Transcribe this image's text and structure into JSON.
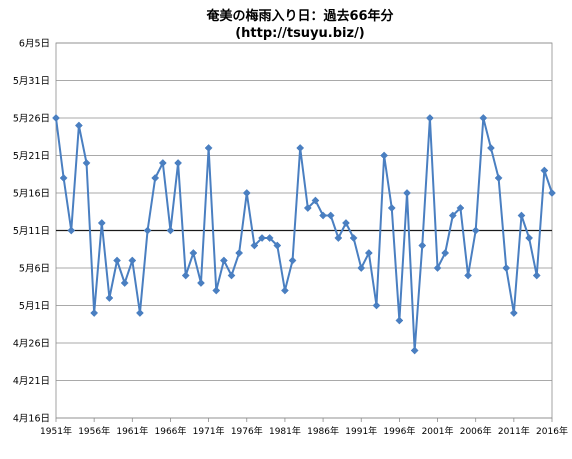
{
  "chart_data": {
    "type": "line",
    "title": "奄美の梅雨入り日：過去66年分",
    "subtitle": "(http://tsuyu.biz/)",
    "y_ticks": [
      "4月16日",
      "4月21日",
      "4月26日",
      "5月1日",
      "5月6日",
      "5月11日",
      "5月16日",
      "5月21日",
      "5月26日",
      "5月31日",
      "6月5日"
    ],
    "x_ticks": [
      "1951年",
      "1956年",
      "1961年",
      "1966年",
      "1971年",
      "1976年",
      "1981年",
      "1986年",
      "1991年",
      "1996年",
      "2001年",
      "2006年",
      "2011年",
      "2016年"
    ],
    "ylim": [
      "4月16日",
      "6月5日"
    ],
    "grid": true,
    "series": [
      {
        "color": "#4a7fc1",
        "marker": "diamond",
        "x": [
          1951,
          1952,
          1953,
          1954,
          1955,
          1956,
          1957,
          1958,
          1959,
          1960,
          1961,
          1962,
          1963,
          1964,
          1965,
          1966,
          1967,
          1968,
          1969,
          1970,
          1971,
          1972,
          1973,
          1974,
          1975,
          1976,
          1977,
          1978,
          1979,
          1980,
          1981,
          1982,
          1983,
          1984,
          1985,
          1986,
          1987,
          1988,
          1989,
          1990,
          1991,
          1992,
          1993,
          1994,
          1995,
          1996,
          1997,
          1998,
          1999,
          2000,
          2001,
          2002,
          2003,
          2004,
          2005,
          2006,
          2007,
          2008,
          2009,
          2010,
          2011,
          2012,
          2013,
          2014,
          2015,
          2016
        ],
        "values": [
          "5月26日",
          "5月18日",
          "5月11日",
          "5月25日",
          "5月20日",
          "4月30日",
          "5月12日",
          "5月2日",
          "5月7日",
          "5月4日",
          "5月7日",
          "4月30日",
          "5月11日",
          "5月18日",
          "5月20日",
          "5月11日",
          "5月20日",
          "5月5日",
          "5月8日",
          "5月4日",
          "5月22日",
          "5月3日",
          "5月7日",
          "5月5日",
          "5月8日",
          "5月16日",
          "5月9日",
          "5月10日",
          "5月10日",
          "5月9日",
          "5月3日",
          "5月7日",
          "5月22日",
          "5月14日",
          "5月15日",
          "5月13日",
          "5月13日",
          "5月10日",
          "5月12日",
          "5月10日",
          "5月6日",
          "5月8日",
          "5月1日",
          "5月21日",
          "5月14日",
          "4月29日",
          "5月16日",
          "4月25日",
          "5月9日",
          "5月26日",
          "5月6日",
          "5月8日",
          "5月13日",
          "5月14日",
          "5月5日",
          "5月11日",
          "5月26日",
          "5月22日",
          "5月18日",
          "5月6日",
          "4月30日",
          "5月13日",
          "5月10日",
          "5月5日",
          "5月19日",
          "5月16日"
        ]
      }
    ],
    "reference_line": {
      "value": "5月11日",
      "color": "#1a1a1a"
    }
  }
}
